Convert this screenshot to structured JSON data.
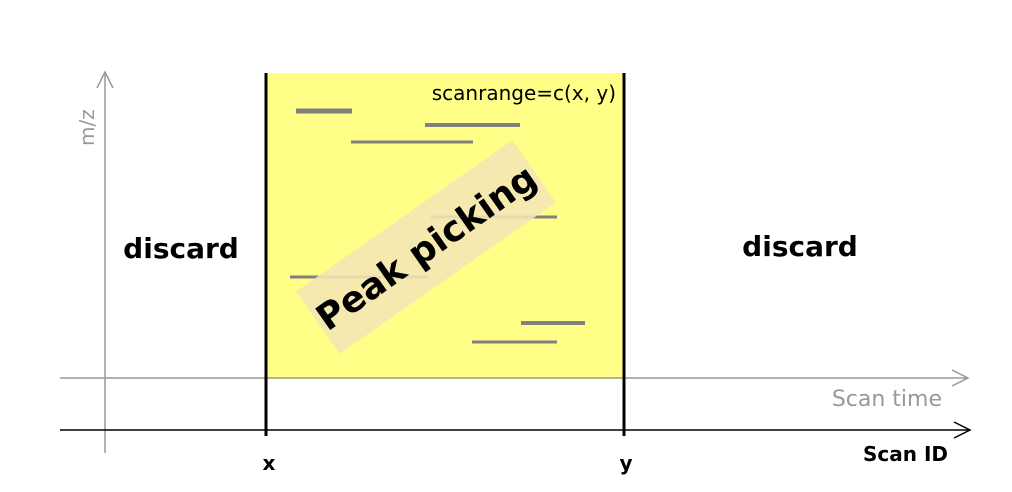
{
  "labels": {
    "mz_axis": "m/z",
    "scan_time_axis": "Scan time",
    "scan_id_axis": "Scan ID",
    "x_marker": "x",
    "y_marker": "y",
    "left_region": "discard",
    "right_region": "discard",
    "scanrange": "scanrange=c(x, y)",
    "peak_picking": "Peak picking"
  },
  "colors": {
    "selected_region": "#ffff88",
    "peak_box": "#f5e6b4",
    "peak_lines": "#808080",
    "boundary_lines": "#000000",
    "time_axis": "#999999",
    "id_axis": "#000000"
  }
}
